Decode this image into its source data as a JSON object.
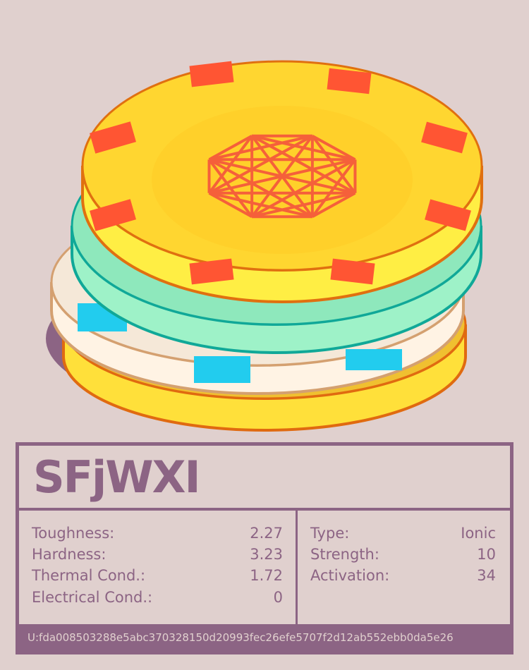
{
  "name": "SFjWXI",
  "stats_left": [
    {
      "label": "Toughness:",
      "value": "2.27"
    },
    {
      "label": "Hardness:",
      "value": "3.23"
    },
    {
      "label": "Thermal Cond.:",
      "value": "1.72"
    },
    {
      "label": "Electrical Cond.:",
      "value": "0"
    }
  ],
  "stats_right": [
    {
      "label": "Type:",
      "value": "Ionic"
    },
    {
      "label": "Strength:",
      "value": "10"
    },
    {
      "label": "Activation:",
      "value": "34"
    }
  ],
  "uid": "U:fda008503288e5abc370328150d20993fec26efe5707f2d12ab552ebb0da5e26",
  "colors": {
    "background": "#e0d0ce",
    "accent": "#8c6484",
    "chip_top": "#ffd630",
    "chip_mint": "#9ef2c8",
    "chip_white": "#fff3e4",
    "chip_bottom": "#ffe03a",
    "marks": "#ff5533"
  }
}
